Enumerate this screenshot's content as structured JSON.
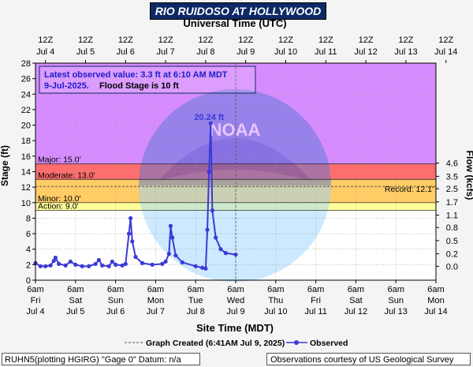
{
  "chart_data": {
    "type": "line",
    "title": "RIO RUIDOSO AT HOLLYWOOD",
    "top_axis_label": "Universal Time (UTC)",
    "xlabel": "Site Time (MDT)",
    "ylabel": "Stage (ft)",
    "y2label": "Flow (kcfs)",
    "ylim": [
      0,
      28
    ],
    "xlim": [
      "Jul 4 6am",
      "Jul 14 6am"
    ],
    "grid": true,
    "y_ticks": [
      "0",
      "2",
      "4",
      "6",
      "8",
      "10",
      "12",
      "14",
      "16",
      "18",
      "20",
      "22",
      "24",
      "26",
      "28"
    ],
    "y2_ticks": [
      {
        "label": "0.0",
        "stage": 1.8
      },
      {
        "label": "0.2",
        "stage": 3.4
      },
      {
        "label": "0.5",
        "stage": 5.1
      },
      {
        "label": "0.8",
        "stage": 6.8
      },
      {
        "label": "1.1",
        "stage": 8.4
      },
      {
        "label": "1.7",
        "stage": 10.1
      },
      {
        "label": "2.5",
        "stage": 11.8
      },
      {
        "label": "3.5",
        "stage": 13.4
      },
      {
        "label": "4.6",
        "stage": 15.1
      }
    ],
    "bottom_ticks": [
      {
        "time": "6am",
        "day": "Fri",
        "date": "Jul 4"
      },
      {
        "time": "6am",
        "day": "Sat",
        "date": "Jul 5"
      },
      {
        "time": "6am",
        "day": "Sun",
        "date": "Jul 6"
      },
      {
        "time": "6am",
        "day": "Mon",
        "date": "Jul 7"
      },
      {
        "time": "6am",
        "day": "Tue",
        "date": "Jul 8"
      },
      {
        "time": "6am",
        "day": "Wed",
        "date": "Jul 9"
      },
      {
        "time": "6am",
        "day": "Thu",
        "date": "Jul 10"
      },
      {
        "time": "6am",
        "day": "Fri",
        "date": "Jul 11"
      },
      {
        "time": "6am",
        "day": "Sat",
        "date": "Jul 12"
      },
      {
        "time": "6am",
        "day": "Sun",
        "date": "Jul 13"
      },
      {
        "time": "6am",
        "day": "Mon",
        "date": "Jul 14"
      }
    ],
    "top_ticks": [
      {
        "time": "12Z",
        "date": "Jul 4"
      },
      {
        "time": "12Z",
        "date": "Jul 5"
      },
      {
        "time": "12Z",
        "date": "Jul 6"
      },
      {
        "time": "12Z",
        "date": "Jul 7"
      },
      {
        "time": "12Z",
        "date": "Jul 8"
      },
      {
        "time": "12Z",
        "date": "Jul 9"
      },
      {
        "time": "12Z",
        "date": "Jul 10"
      },
      {
        "time": "12Z",
        "date": "Jul 11"
      },
      {
        "time": "12Z",
        "date": "Jul 12"
      },
      {
        "time": "12Z",
        "date": "Jul 13"
      },
      {
        "time": "12Z",
        "date": "Jul 14"
      }
    ],
    "flood_categories": [
      {
        "label": "Action: 9.0'",
        "stage": 9.0,
        "color": "#ffff9a"
      },
      {
        "label": "Minor: 10.0'",
        "stage": 10.0,
        "color": "#ffcc66"
      },
      {
        "label": "Moderate: 13.0'",
        "stage": 13.0,
        "color": "#ff6d6d"
      },
      {
        "label": "Major: 15.0'",
        "stage": 15.0,
        "color": "#d68cff"
      }
    ],
    "below_action_color": "#ffffff",
    "major_band_color": "#e79cfb",
    "record": {
      "label": "Record: 12.1'",
      "stage": 12.1
    },
    "peak_label": "20.24 ft",
    "info_text": {
      "line1": "Latest observed value: 3.3 ft at 6:10 AM MDT",
      "line2": "9-Jul-2025.",
      "line2b": "Flood Stage is 10 ft"
    },
    "legend": {
      "created": "Graph Created (6:41AM Jul 9, 2025)",
      "observed": "Observed"
    },
    "series": [
      {
        "name": "Observed",
        "color": "#3a3ad6",
        "points": [
          [
            "Jul 4 6am",
            2.2
          ],
          [
            "Jul 4 9am",
            1.8
          ],
          [
            "Jul 4 12pm",
            1.8
          ],
          [
            "Jul 4 3pm",
            1.9
          ],
          [
            "Jul 4 5pm",
            2.5
          ],
          [
            "Jul 4 6pm",
            2.9
          ],
          [
            "Jul 4 8pm",
            2.1
          ],
          [
            "Jul 5 12am",
            1.9
          ],
          [
            "Jul 5 3am",
            2.4
          ],
          [
            "Jul 5 6am",
            2.0
          ],
          [
            "Jul 5 10am",
            1.8
          ],
          [
            "Jul 5 2pm",
            1.8
          ],
          [
            "Jul 5 6pm",
            2.1
          ],
          [
            "Jul 5 8pm",
            2.6
          ],
          [
            "Jul 5 10pm",
            1.9
          ],
          [
            "Jul 6 2am",
            1.8
          ],
          [
            "Jul 6 4am",
            2.4
          ],
          [
            "Jul 6 6am",
            2.0
          ],
          [
            "Jul 6 10am",
            1.9
          ],
          [
            "Jul 6 12pm",
            2.1
          ],
          [
            "Jul 6 2pm",
            6.0
          ],
          [
            "Jul 6 3pm",
            8.0
          ],
          [
            "Jul 6 4pm",
            5.0
          ],
          [
            "Jul 6 6pm",
            3.0
          ],
          [
            "Jul 6 10pm",
            2.2
          ],
          [
            "Jul 7 4am",
            2.0
          ],
          [
            "Jul 7 10am",
            2.1
          ],
          [
            "Jul 7 12pm",
            2.4
          ],
          [
            "Jul 7 2pm",
            3.4
          ],
          [
            "Jul 7 3pm",
            7.0
          ],
          [
            "Jul 7 4pm",
            5.5
          ],
          [
            "Jul 7 6pm",
            3.2
          ],
          [
            "Jul 7 10pm",
            2.3
          ],
          [
            "Jul 8 6am",
            1.8
          ],
          [
            "Jul 8 10am",
            1.6
          ],
          [
            "Jul 8 12pm",
            1.5
          ],
          [
            "Jul 8 1pm",
            6.5
          ],
          [
            "Jul 8 2pm",
            14.0
          ],
          [
            "Jul 8 3pm",
            20.24
          ],
          [
            "Jul 8 4pm",
            9.0
          ],
          [
            "Jul 8 6pm",
            5.5
          ],
          [
            "Jul 8 9pm",
            4.0
          ],
          [
            "Jul 9 12am",
            3.5
          ],
          [
            "Jul 9 6am",
            3.3
          ]
        ]
      }
    ]
  },
  "footer": {
    "left": "RUHN5(plotting HGIRG) \"Gage 0\" Datum: n/a",
    "right": "Observations courtesy of US Geological Survey"
  }
}
